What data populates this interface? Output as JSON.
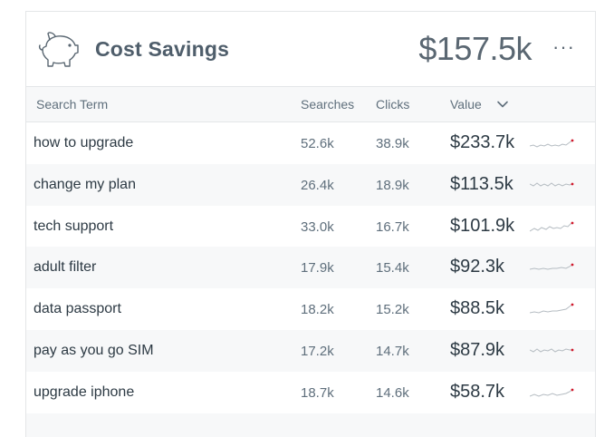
{
  "widget": {
    "title": "Cost Savings",
    "total": "$157.5k",
    "more_label": "···",
    "icons": {
      "header": "piggy-bank-icon",
      "sort": "chevron-down-icon",
      "more": "more-horizontal-icon"
    },
    "colors": {
      "title": "#4f5e6b",
      "sparkline": "#b5bcc2",
      "sparkline_point": "#d1192c"
    }
  },
  "table": {
    "columns": {
      "term": "Search Term",
      "searches": "Searches",
      "clicks": "Clicks",
      "value": "Value"
    },
    "rows": [
      {
        "term": "how to upgrade",
        "searches": "52.6k",
        "clicks": "38.9k",
        "value": "$233.7k"
      },
      {
        "term": "change my plan",
        "searches": "26.4k",
        "clicks": "18.9k",
        "value": "$113.5k"
      },
      {
        "term": "tech support",
        "searches": "33.0k",
        "clicks": "16.7k",
        "value": "$101.9k"
      },
      {
        "term": "adult filter",
        "searches": "17.9k",
        "clicks": "15.4k",
        "value": "$92.3k"
      },
      {
        "term": "data passport",
        "searches": "18.2k",
        "clicks": "15.2k",
        "value": "$88.5k"
      },
      {
        "term": "pay as you go SIM",
        "searches": "17.2k",
        "clicks": "14.7k",
        "value": "$87.9k"
      },
      {
        "term": "upgrade iphone",
        "searches": "18.7k",
        "clicks": "14.6k",
        "value": "$58.7k"
      }
    ]
  }
}
